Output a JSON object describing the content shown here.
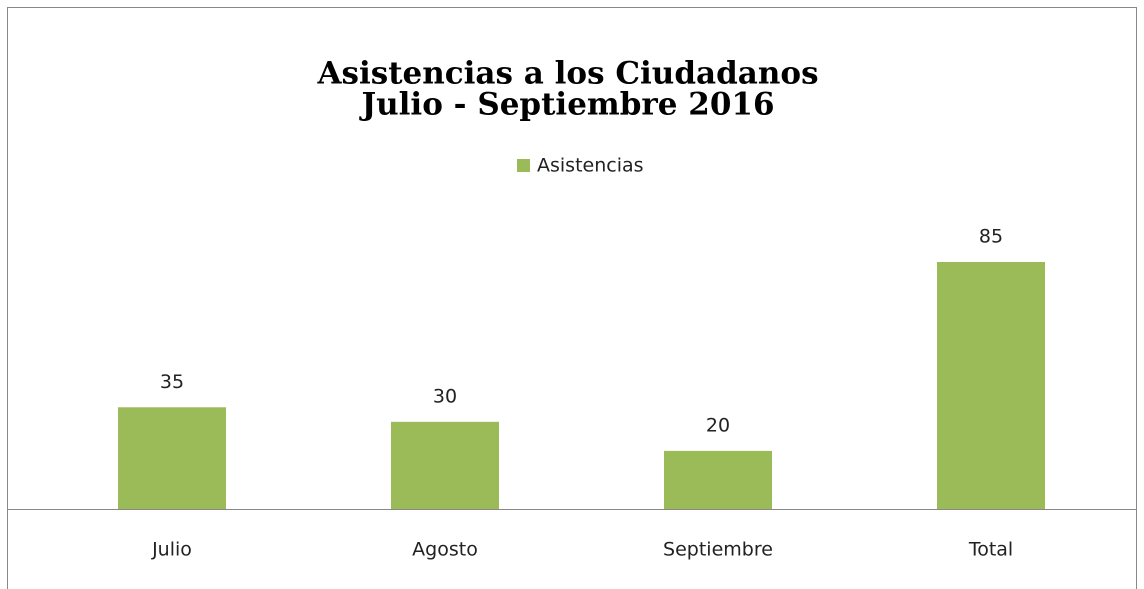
{
  "chart_data": {
    "type": "bar",
    "title": "Asistencias a los Ciudadanos",
    "subtitle": "Julio - Septiembre 2016",
    "categories": [
      "Julio",
      "Agosto",
      "Septiembre",
      "Total"
    ],
    "series": [
      {
        "name": "Asistencias",
        "color": "#9bbb59",
        "values": [
          35,
          30,
          20,
          85
        ]
      }
    ],
    "legend": "top"
  }
}
